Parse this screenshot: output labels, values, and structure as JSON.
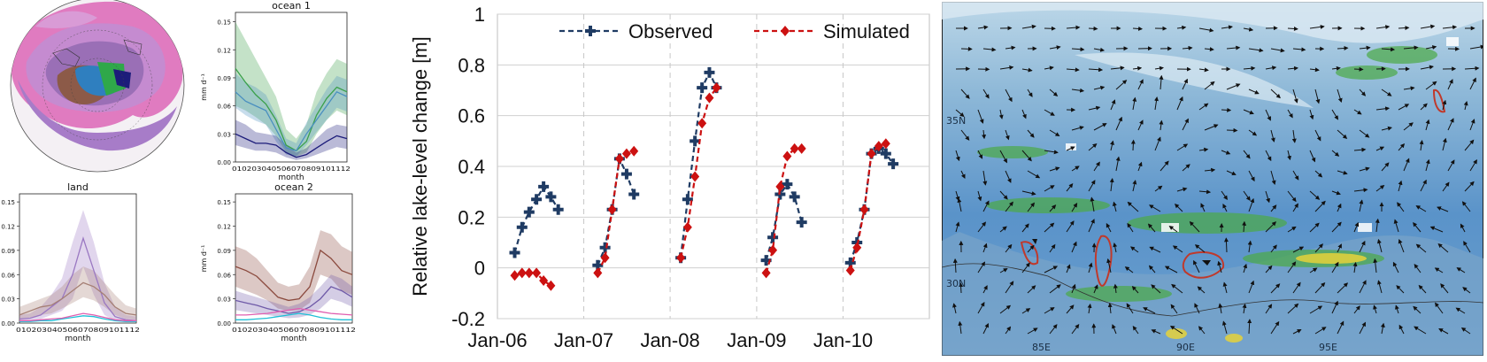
{
  "colors": {
    "observed": "#1f3b63",
    "simulated": "#cc1111",
    "ocean1_green": "#3aa04a",
    "ocean1_blue": "#4a8fc0",
    "ocean1_navy": "#1c1c7a",
    "land_purple": "#9a78c2",
    "land_brown": "#a57f74",
    "land_cyan": "#1fbfd6",
    "land_pink": "#e05fb0",
    "ocean2_brown": "#8b4a3e",
    "ocean2_purple": "#6f5aa8",
    "ocean2_cyan": "#1fbfd6",
    "ocean2_pink": "#e05fb0"
  },
  "map_panel": {
    "labels": [
      "35N",
      "30N",
      "85E",
      "90E",
      "95E"
    ]
  },
  "chart_data": [
    {
      "type": "line",
      "title": "ocean 1",
      "xlabel": "month",
      "ylabel": "mm d⁻¹",
      "categories": [
        "01",
        "02",
        "03",
        "04",
        "05",
        "06",
        "07",
        "08",
        "09",
        "10",
        "11",
        "12"
      ],
      "xtick_text": "010203040506070809101112",
      "yticks": [
        "0.00",
        "0.03",
        "0.06",
        "0.09",
        "0.12",
        "0.15"
      ],
      "ylim": [
        0,
        0.16
      ],
      "series": [
        {
          "color_key": "ocean1_green",
          "values": [
            0.1,
            0.085,
            0.072,
            0.062,
            0.045,
            0.018,
            0.012,
            0.022,
            0.05,
            0.068,
            0.08,
            0.075
          ],
          "upper": [
            0.15,
            0.13,
            0.11,
            0.09,
            0.07,
            0.035,
            0.025,
            0.04,
            0.075,
            0.095,
            0.11,
            0.105
          ],
          "lower": [
            0.06,
            0.055,
            0.048,
            0.04,
            0.028,
            0.01,
            0.006,
            0.01,
            0.03,
            0.045,
            0.055,
            0.05
          ]
        },
        {
          "color_key": "ocean1_blue",
          "values": [
            0.075,
            0.065,
            0.06,
            0.055,
            0.035,
            0.015,
            0.012,
            0.03,
            0.045,
            0.06,
            0.075,
            0.07
          ],
          "upper": [
            0.095,
            0.085,
            0.08,
            0.072,
            0.05,
            0.025,
            0.02,
            0.042,
            0.06,
            0.078,
            0.092,
            0.088
          ],
          "lower": [
            0.058,
            0.05,
            0.044,
            0.04,
            0.022,
            0.008,
            0.006,
            0.018,
            0.032,
            0.045,
            0.058,
            0.054
          ]
        },
        {
          "color_key": "ocean1_navy",
          "values": [
            0.03,
            0.025,
            0.02,
            0.02,
            0.018,
            0.01,
            0.005,
            0.008,
            0.015,
            0.022,
            0.028,
            0.025
          ],
          "upper": [
            0.045,
            0.04,
            0.032,
            0.03,
            0.028,
            0.018,
            0.01,
            0.015,
            0.025,
            0.035,
            0.04,
            0.038
          ],
          "lower": [
            0.018,
            0.015,
            0.012,
            0.012,
            0.01,
            0.005,
            0.002,
            0.004,
            0.008,
            0.012,
            0.016,
            0.014
          ]
        }
      ]
    },
    {
      "type": "line",
      "title": "land",
      "xlabel": "month",
      "ylabel": "mm d⁻¹",
      "categories": [
        "01",
        "02",
        "03",
        "04",
        "05",
        "06",
        "07",
        "08",
        "09",
        "10",
        "11",
        "12"
      ],
      "xtick_text": "010203040506070809101112",
      "yticks": [
        "0.00",
        "0.03",
        "0.06",
        "0.09",
        "0.12",
        "0.15"
      ],
      "ylim": [
        0,
        0.16
      ],
      "series": [
        {
          "color_key": "land_purple",
          "values": [
            0.005,
            0.006,
            0.01,
            0.02,
            0.03,
            0.06,
            0.105,
            0.065,
            0.025,
            0.008,
            0.004,
            0.003
          ],
          "upper": [
            0.01,
            0.012,
            0.02,
            0.035,
            0.055,
            0.1,
            0.14,
            0.1,
            0.05,
            0.02,
            0.01,
            0.008
          ],
          "lower": [
            0.002,
            0.003,
            0.005,
            0.01,
            0.015,
            0.03,
            0.07,
            0.035,
            0.01,
            0.003,
            0.001,
            0.001
          ]
        },
        {
          "color_key": "land_brown",
          "values": [
            0.01,
            0.015,
            0.02,
            0.022,
            0.03,
            0.04,
            0.05,
            0.045,
            0.035,
            0.02,
            0.012,
            0.01
          ],
          "upper": [
            0.02,
            0.025,
            0.03,
            0.035,
            0.045,
            0.06,
            0.07,
            0.065,
            0.05,
            0.035,
            0.022,
            0.018
          ],
          "lower": [
            0.004,
            0.007,
            0.01,
            0.012,
            0.018,
            0.025,
            0.032,
            0.028,
            0.02,
            0.01,
            0.005,
            0.004
          ]
        },
        {
          "color_key": "land_cyan",
          "values": [
            0.002,
            0.002,
            0.003,
            0.003,
            0.005,
            0.007,
            0.009,
            0.008,
            0.005,
            0.003,
            0.002,
            0.002
          ]
        },
        {
          "color_key": "land_pink",
          "values": [
            0.003,
            0.003,
            0.004,
            0.005,
            0.006,
            0.009,
            0.012,
            0.01,
            0.007,
            0.004,
            0.003,
            0.003
          ]
        }
      ]
    },
    {
      "type": "line",
      "title": "ocean 2",
      "xlabel": "month",
      "ylabel": "mm d⁻¹",
      "categories": [
        "01",
        "02",
        "03",
        "04",
        "05",
        "06",
        "07",
        "08",
        "09",
        "10",
        "11",
        "12"
      ],
      "xtick_text": "010203040506070809101112",
      "yticks": [
        "0.00",
        "0.03",
        "0.06",
        "0.09",
        "0.12",
        "0.15"
      ],
      "ylim": [
        0,
        0.16
      ],
      "series": [
        {
          "color_key": "ocean2_brown",
          "values": [
            0.07,
            0.065,
            0.058,
            0.045,
            0.032,
            0.028,
            0.03,
            0.045,
            0.09,
            0.08,
            0.065,
            0.06
          ],
          "upper": [
            0.095,
            0.09,
            0.08,
            0.065,
            0.05,
            0.045,
            0.048,
            0.07,
            0.115,
            0.11,
            0.095,
            0.088
          ],
          "lower": [
            0.045,
            0.04,
            0.035,
            0.028,
            0.018,
            0.015,
            0.016,
            0.025,
            0.06,
            0.055,
            0.04,
            0.035
          ]
        },
        {
          "color_key": "ocean2_purple",
          "values": [
            0.028,
            0.025,
            0.022,
            0.018,
            0.015,
            0.012,
            0.014,
            0.02,
            0.03,
            0.045,
            0.04,
            0.032
          ],
          "upper": [
            0.04,
            0.036,
            0.032,
            0.028,
            0.024,
            0.02,
            0.024,
            0.032,
            0.045,
            0.06,
            0.055,
            0.045
          ],
          "lower": [
            0.016,
            0.014,
            0.012,
            0.01,
            0.008,
            0.006,
            0.007,
            0.01,
            0.018,
            0.03,
            0.026,
            0.02
          ]
        },
        {
          "color_key": "ocean2_cyan",
          "values": [
            0.004,
            0.004,
            0.005,
            0.006,
            0.008,
            0.01,
            0.012,
            0.01,
            0.007,
            0.005,
            0.004,
            0.004
          ]
        },
        {
          "color_key": "ocean2_pink",
          "values": [
            0.01,
            0.01,
            0.011,
            0.012,
            0.014,
            0.016,
            0.018,
            0.016,
            0.014,
            0.012,
            0.011,
            0.01
          ]
        }
      ]
    },
    {
      "type": "line",
      "title": "",
      "xlabel": "",
      "ylabel": "Relative lake-level change [m]",
      "ylim": [
        -0.2,
        1.0
      ],
      "yticks": [
        "-0.2",
        "0",
        "0.2",
        "0.4",
        "0.6",
        "0.8",
        "1"
      ],
      "xlim": [
        "2006-01-01",
        "2011-01-01"
      ],
      "xticks": [
        {
          "label": "Jan-06",
          "date": "2006-01-01"
        },
        {
          "label": "Jan-07",
          "date": "2007-01-01"
        },
        {
          "label": "Jan-08",
          "date": "2008-01-01"
        },
        {
          "label": "Jan-09",
          "date": "2009-01-01"
        },
        {
          "label": "Jan-10",
          "date": "2010-01-01"
        }
      ],
      "legend": "top",
      "series": [
        {
          "name": "Observed",
          "color_key": "observed",
          "marker": "plus",
          "segments": [
            [
              [
                "2006-03-15",
                0.06
              ],
              [
                "2006-04-15",
                0.16
              ],
              [
                "2006-05-15",
                0.22
              ],
              [
                "2006-06-15",
                0.27
              ],
              [
                "2006-07-15",
                0.32
              ],
              [
                "2006-08-15",
                0.28
              ],
              [
                "2006-09-15",
                0.23
              ]
            ],
            [
              [
                "2007-03-01",
                0.01
              ],
              [
                "2007-04-01",
                0.08
              ],
              [
                "2007-05-01",
                0.23
              ],
              [
                "2007-06-01",
                0.43
              ],
              [
                "2007-07-01",
                0.37
              ],
              [
                "2007-08-01",
                0.29
              ]
            ],
            [
              [
                "2008-02-15",
                0.04
              ],
              [
                "2008-03-15",
                0.27
              ],
              [
                "2008-04-15",
                0.5
              ],
              [
                "2008-05-15",
                0.71
              ],
              [
                "2008-06-15",
                0.77
              ],
              [
                "2008-07-15",
                0.71
              ]
            ],
            [
              [
                "2009-02-10",
                0.03
              ],
              [
                "2009-03-10",
                0.12
              ],
              [
                "2009-04-10",
                0.29
              ],
              [
                "2009-05-10",
                0.33
              ],
              [
                "2009-06-10",
                0.28
              ],
              [
                "2009-07-10",
                0.18
              ]
            ],
            [
              [
                "2010-02-01",
                0.02
              ],
              [
                "2010-03-01",
                0.1
              ],
              [
                "2010-04-01",
                0.23
              ],
              [
                "2010-05-01",
                0.45
              ],
              [
                "2010-06-01",
                0.47
              ],
              [
                "2010-07-01",
                0.45
              ],
              [
                "2010-08-01",
                0.41
              ]
            ]
          ]
        },
        {
          "name": "Simulated",
          "color_key": "simulated",
          "marker": "diamond",
          "segments": [
            [
              [
                "2006-03-15",
                -0.03
              ],
              [
                "2006-04-15",
                -0.02
              ],
              [
                "2006-05-15",
                -0.02
              ],
              [
                "2006-06-15",
                -0.02
              ],
              [
                "2006-07-15",
                -0.05
              ],
              [
                "2006-08-15",
                -0.07
              ]
            ],
            [
              [
                "2007-03-01",
                -0.02
              ],
              [
                "2007-04-01",
                0.04
              ],
              [
                "2007-05-01",
                0.23
              ],
              [
                "2007-06-01",
                0.43
              ],
              [
                "2007-07-01",
                0.45
              ],
              [
                "2007-08-01",
                0.46
              ]
            ],
            [
              [
                "2008-02-15",
                0.04
              ],
              [
                "2008-03-15",
                0.16
              ],
              [
                "2008-04-15",
                0.36
              ],
              [
                "2008-05-15",
                0.57
              ],
              [
                "2008-06-15",
                0.67
              ],
              [
                "2008-07-15",
                0.71
              ]
            ],
            [
              [
                "2009-02-10",
                -0.02
              ],
              [
                "2009-03-10",
                0.07
              ],
              [
                "2009-04-10",
                0.32
              ],
              [
                "2009-05-10",
                0.44
              ],
              [
                "2009-06-10",
                0.47
              ],
              [
                "2009-07-10",
                0.47
              ]
            ],
            [
              [
                "2010-02-01",
                -0.01
              ],
              [
                "2010-03-01",
                0.08
              ],
              [
                "2010-04-01",
                0.23
              ],
              [
                "2010-05-01",
                0.45
              ],
              [
                "2010-06-01",
                0.48
              ],
              [
                "2010-07-01",
                0.49
              ]
            ]
          ]
        }
      ]
    }
  ]
}
